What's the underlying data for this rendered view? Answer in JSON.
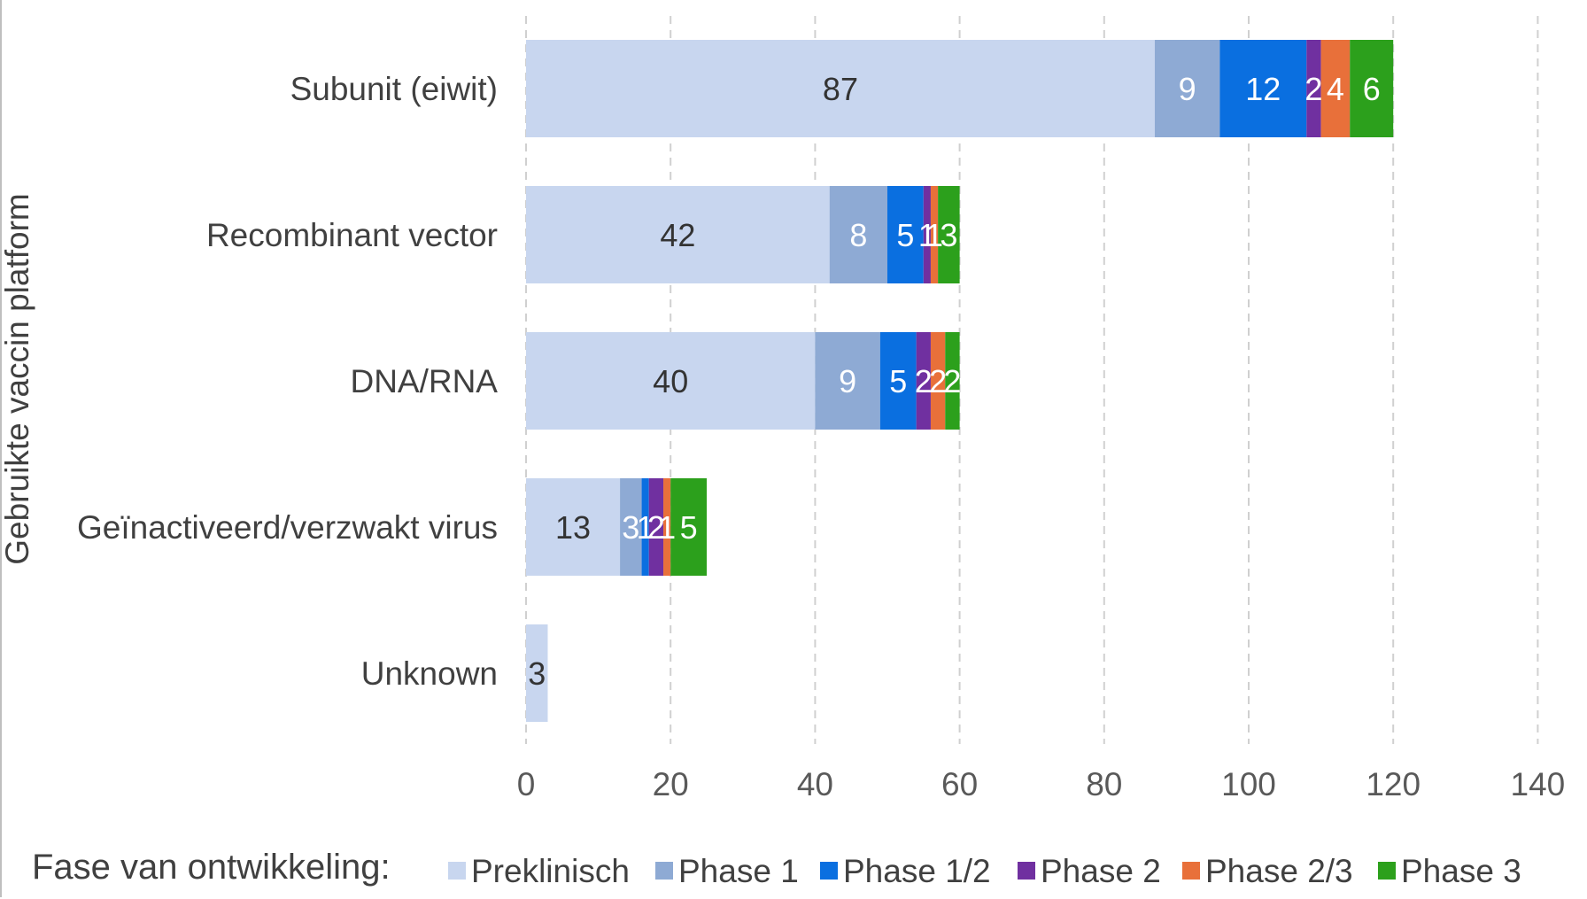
{
  "chart_data": {
    "type": "bar",
    "orientation": "horizontal",
    "stacked": true,
    "title": "",
    "ylabel": "Gebruikte vaccin platform",
    "xlabel": "",
    "xlim": [
      0,
      140
    ],
    "xticks": [
      0,
      20,
      40,
      60,
      80,
      100,
      120,
      140
    ],
    "grid": true,
    "legend_position": "bottom",
    "legend_title": "Fase van ontwikkeling:",
    "categories": [
      "Subunit (eiwit)",
      "Recombinant vector",
      "DNA/RNA",
      "Geïnactiveerd/verzwakt virus",
      "Unknown"
    ],
    "series": [
      {
        "name": "Preklinisch",
        "color": "#c8d6ef",
        "label_color": "#333333",
        "values": [
          87,
          42,
          40,
          13,
          3
        ]
      },
      {
        "name": "Phase 1",
        "color": "#8eaad4",
        "label_color": "#ffffff",
        "values": [
          9,
          8,
          9,
          3,
          0
        ]
      },
      {
        "name": "Phase 1/2",
        "color": "#0a6fe0",
        "label_color": "#ffffff",
        "values": [
          12,
          5,
          5,
          1,
          0
        ]
      },
      {
        "name": "Phase 2",
        "color": "#7030a0",
        "label_color": "#ffffff",
        "values": [
          2,
          1,
          2,
          2,
          0
        ]
      },
      {
        "name": "Phase 2/3",
        "color": "#e8703a",
        "label_color": "#ffffff",
        "values": [
          4,
          1,
          2,
          1,
          0
        ]
      },
      {
        "name": "Phase 3",
        "color": "#2ca01c",
        "label_color": "#ffffff",
        "values": [
          6,
          3,
          2,
          5,
          0
        ]
      }
    ]
  }
}
